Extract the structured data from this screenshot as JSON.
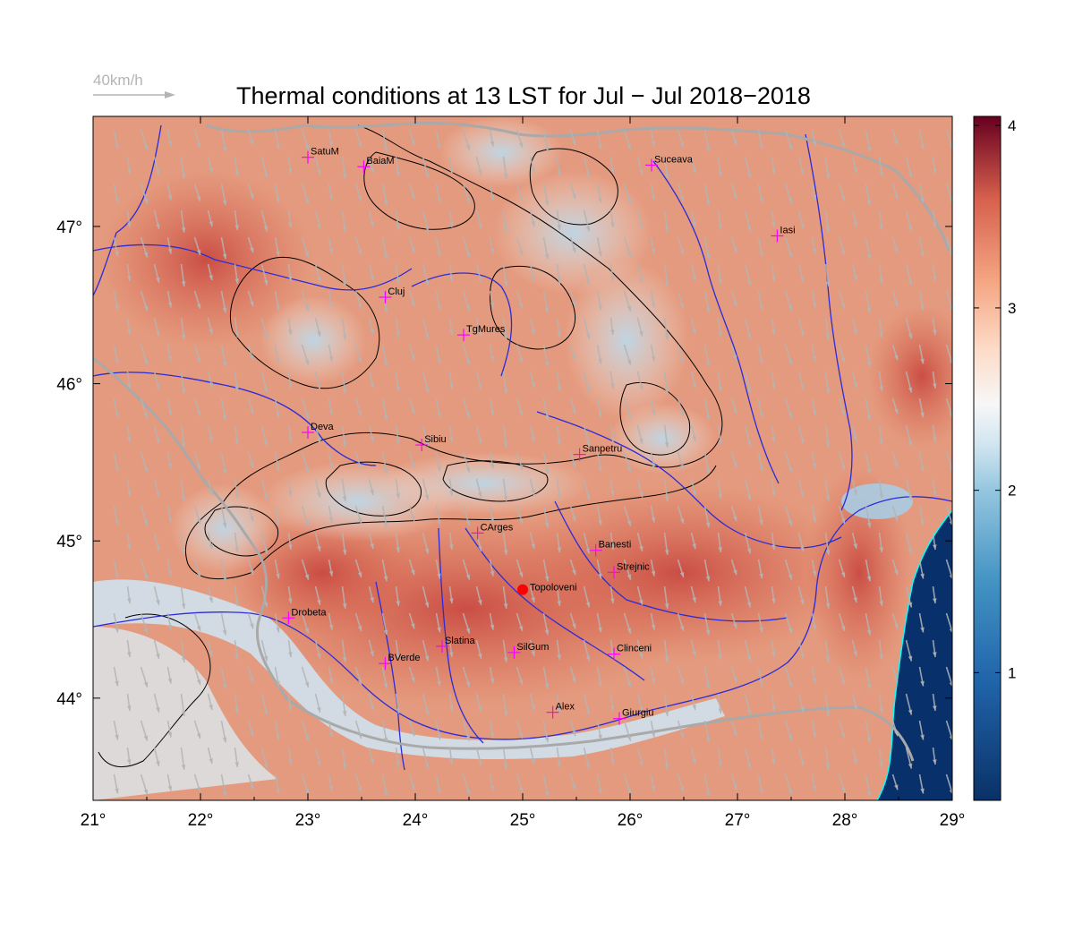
{
  "title": "Thermal conditions at 13 LST for Jul − Jul  2018−2018",
  "wind_reference": {
    "label": "40km/h",
    "color": "#b4b4b4"
  },
  "axes": {
    "lon_ticks": [
      "21°",
      "22°",
      "23°",
      "24°",
      "25°",
      "26°",
      "27°",
      "28°",
      "29°"
    ],
    "lat_ticks": [
      "44°",
      "45°",
      "46°",
      "47°"
    ],
    "lon_range": [
      21,
      29
    ],
    "lat_range": [
      43.35,
      47.7
    ]
  },
  "colorbar": {
    "ticks": [
      "1",
      "2",
      "3",
      "4"
    ],
    "range": [
      0.3,
      4.05
    ],
    "colormap": "RdBu_r"
  },
  "cities": [
    {
      "name": "SatuM",
      "lon": 23.0,
      "lat": 47.44
    },
    {
      "name": "BaiaM",
      "lon": 23.52,
      "lat": 47.38
    },
    {
      "name": "Suceava",
      "lon": 26.2,
      "lat": 47.39
    },
    {
      "name": "Iasi",
      "lon": 27.37,
      "lat": 46.94
    },
    {
      "name": "Cluj",
      "lon": 23.72,
      "lat": 46.55
    },
    {
      "name": "TgMures",
      "lon": 24.45,
      "lat": 46.31
    },
    {
      "name": "Deva",
      "lon": 23.0,
      "lat": 45.69
    },
    {
      "name": "Sibiu",
      "lon": 24.06,
      "lat": 45.61
    },
    {
      "name": "Sanpetru",
      "lon": 25.53,
      "lat": 45.55
    },
    {
      "name": "CArges",
      "lon": 24.58,
      "lat": 45.05
    },
    {
      "name": "Banesti",
      "lon": 25.68,
      "lat": 44.94
    },
    {
      "name": "Strejnic",
      "lon": 25.85,
      "lat": 44.8
    },
    {
      "name": "Drobeta",
      "lon": 22.82,
      "lat": 44.51
    },
    {
      "name": "Slatina",
      "lon": 24.25,
      "lat": 44.33
    },
    {
      "name": "SilGum",
      "lon": 24.92,
      "lat": 44.29
    },
    {
      "name": "Clinceni",
      "lon": 25.85,
      "lat": 44.28
    },
    {
      "name": "BVerde",
      "lon": 23.72,
      "lat": 44.22
    },
    {
      "name": "Alex",
      "lon": 25.28,
      "lat": 43.91
    },
    {
      "name": "Giurgiu",
      "lon": 25.9,
      "lat": 43.87
    }
  ],
  "highlight_point": {
    "name": "Topoloveni",
    "lon": 25.0,
    "lat": 44.69,
    "color": "#ff0000"
  },
  "colors": {
    "city_marker": "#ff00ff",
    "rivers": "#2b2bd8",
    "border": "#a9a9a9",
    "contours": "#000000",
    "wind_arrows": "#b4b4b4",
    "sea": "#08306b",
    "coast": "#00ffff"
  }
}
